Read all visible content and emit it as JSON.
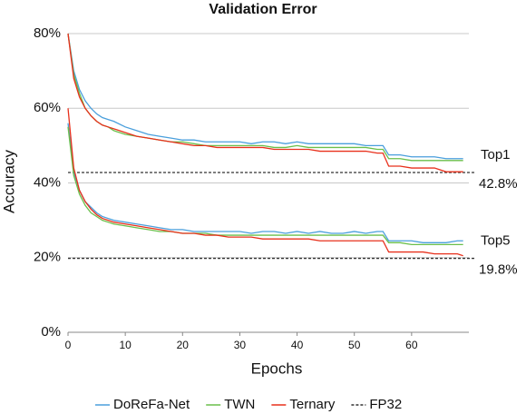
{
  "chart_data": {
    "type": "line",
    "title": "Validation Error",
    "xlabel": "Epochs",
    "ylabel": "Accuracy",
    "x": [
      0,
      1,
      2,
      3,
      4,
      5,
      6,
      7,
      8,
      10,
      12,
      14,
      16,
      18,
      20,
      22,
      24,
      26,
      28,
      30,
      32,
      34,
      36,
      38,
      40,
      42,
      44,
      46,
      48,
      50,
      52,
      54,
      55,
      56,
      58,
      60,
      62,
      64,
      66,
      68,
      69
    ],
    "xlim": [
      0,
      70
    ],
    "xticks": [
      0,
      10,
      20,
      30,
      40,
      50,
      60
    ],
    "ylim": [
      0,
      80
    ],
    "yticks": [
      {
        "value": 0,
        "label": "0%"
      },
      {
        "value": 20,
        "label": "20%"
      },
      {
        "value": 40,
        "label": "40%"
      },
      {
        "value": 60,
        "label": "60%"
      },
      {
        "value": 80,
        "label": "80%"
      }
    ],
    "grid": true,
    "legend_position": "bottom",
    "series": [
      {
        "name": "DoReFa-Net",
        "color": "#4a9fdc",
        "values": [
          80,
          70,
          65,
          62,
          60,
          58.5,
          57.5,
          57,
          56.5,
          55,
          54,
          53,
          52.5,
          52,
          51.5,
          51.5,
          51,
          51,
          51,
          51,
          50.5,
          51,
          51,
          50.5,
          51,
          50.5,
          50.5,
          50.5,
          50.5,
          50.5,
          50,
          50,
          50,
          47.5,
          47.5,
          47,
          47,
          47,
          46.5,
          46.5,
          46.5
        ],
        "values_top5": [
          56,
          43,
          38,
          35,
          33.5,
          32,
          31,
          30.5,
          30,
          29.5,
          29,
          28.5,
          28,
          27.5,
          27.5,
          27,
          27,
          27,
          27,
          27,
          26.5,
          27,
          27,
          26.5,
          27,
          26.5,
          27,
          26.5,
          26.5,
          27,
          26.5,
          27,
          27,
          24.5,
          24.5,
          24.5,
          24,
          24,
          24,
          24.5,
          24.5
        ]
      },
      {
        "name": "TWN",
        "color": "#6abf4b",
        "values": [
          80,
          69,
          64,
          60,
          58,
          56.5,
          55.5,
          55,
          54,
          53,
          52.5,
          52,
          51.5,
          51,
          51,
          50.5,
          50,
          50,
          50,
          50,
          50,
          50,
          49.5,
          49.5,
          50,
          49.5,
          49.5,
          49.5,
          49.5,
          49.5,
          49.5,
          49,
          49,
          46.5,
          46.5,
          46,
          46,
          46,
          46,
          46,
          46
        ],
        "values_top5": [
          55,
          42,
          37,
          34,
          32,
          31,
          30,
          29.5,
          29,
          28.5,
          28,
          27.5,
          27,
          27,
          26.5,
          26.5,
          26.5,
          26,
          26,
          26,
          26,
          26,
          26,
          26,
          26,
          26,
          26,
          26,
          26,
          26,
          26,
          26,
          26,
          24,
          24,
          23.5,
          23.5,
          23.5,
          23.5,
          23.5,
          23.5
        ]
      },
      {
        "name": "Ternary",
        "color": "#e8301c",
        "values": [
          80,
          68,
          63,
          60,
          58,
          56.5,
          55.5,
          55,
          54.5,
          53.5,
          52.5,
          52,
          51.5,
          51,
          50.5,
          50,
          50,
          49.5,
          49.5,
          49.5,
          49.5,
          49.5,
          49,
          49,
          49,
          49,
          48.5,
          48.5,
          48.5,
          48.5,
          48.5,
          48,
          48,
          44.5,
          44.5,
          44,
          44,
          44,
          43,
          43,
          43
        ],
        "values_top5": [
          60,
          44,
          38,
          35,
          33,
          31.5,
          30.5,
          30,
          29.5,
          29,
          28.5,
          28,
          27.5,
          27,
          26.5,
          26.5,
          26,
          26,
          25.5,
          25.5,
          25.5,
          25,
          25,
          25,
          25,
          25,
          24.5,
          24.5,
          24.5,
          24.5,
          24.5,
          24.5,
          24.5,
          21.5,
          21.5,
          21.5,
          21.5,
          21,
          21,
          21,
          20.5
        ]
      }
    ],
    "reference_name": "FP32",
    "reference_color": "#333333",
    "references": [
      {
        "label": "Top1",
        "value": 42.8,
        "value_label": "42.8%"
      },
      {
        "label": "Top5",
        "value": 19.8,
        "value_label": "19.8%"
      }
    ]
  }
}
